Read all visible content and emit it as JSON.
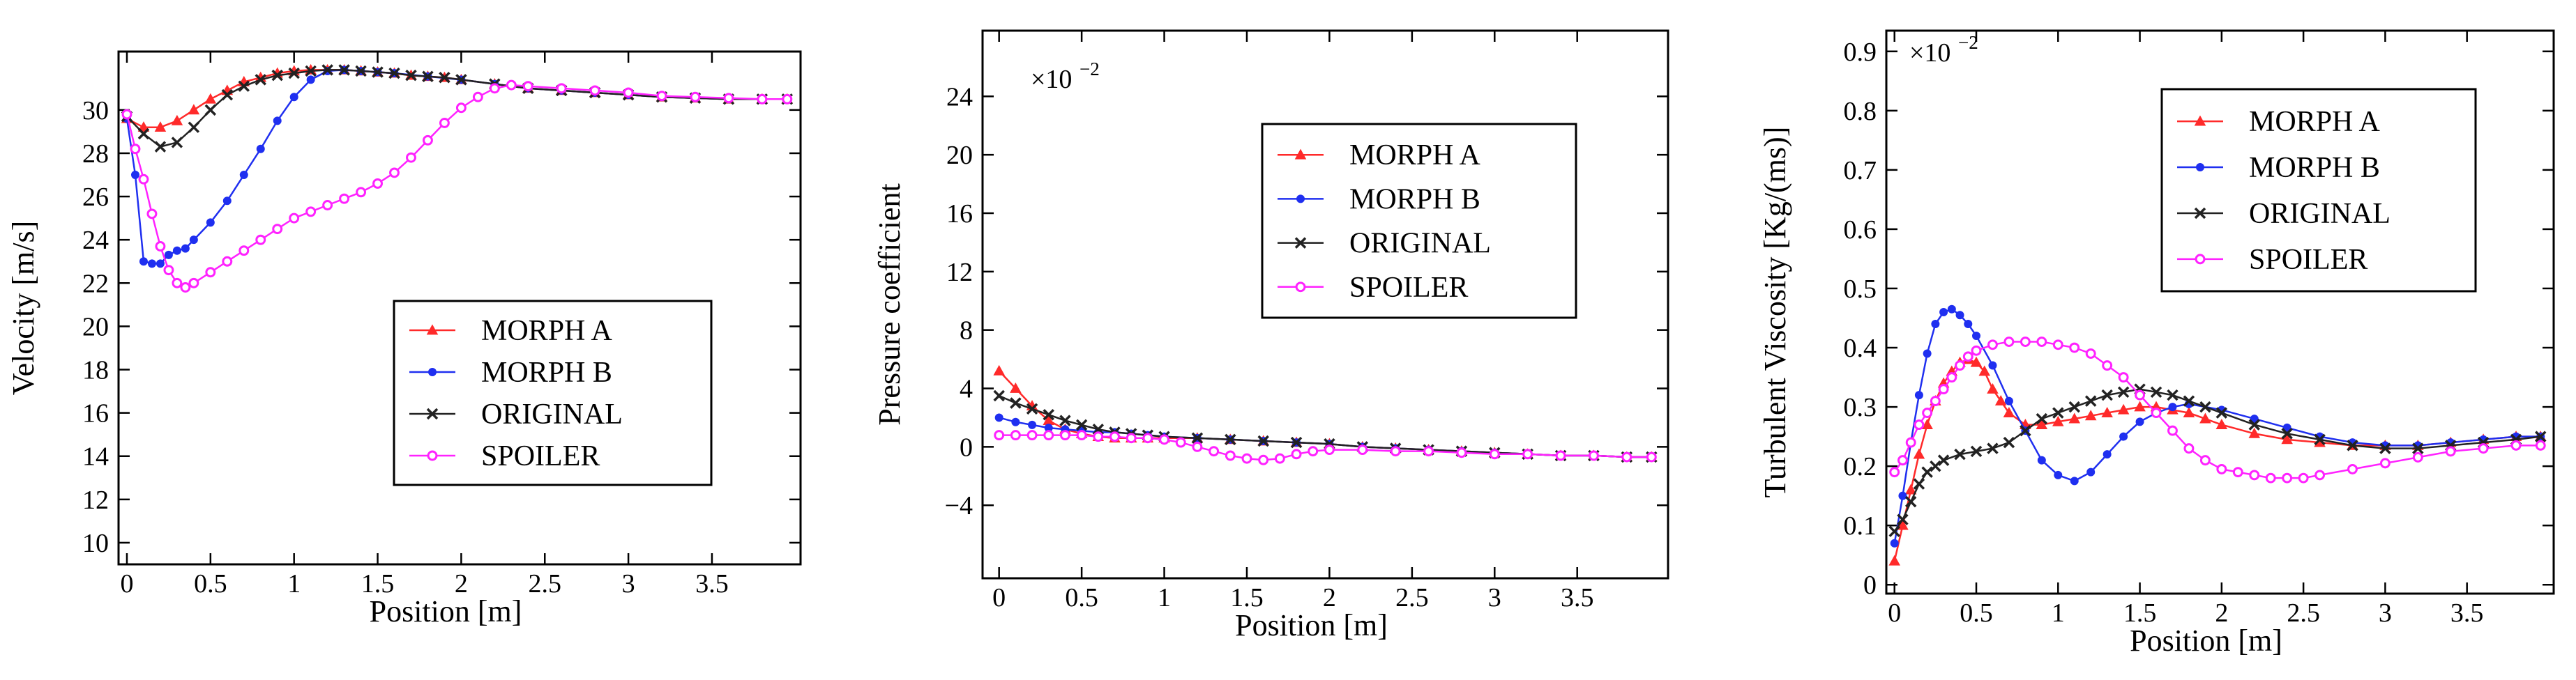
{
  "chart_data": [
    {
      "type": "line",
      "title": "",
      "xlabel": "Position [m]",
      "ylabel": "Velocity [m/s]",
      "xlim": [
        -0.05,
        4.03
      ],
      "ylim": [
        9.0,
        32.7
      ],
      "xticks": [
        0,
        0.5,
        1,
        1.5,
        2,
        2.5,
        3,
        3.5
      ],
      "xtick_labels": [
        "0",
        "0.5",
        "1",
        "1.5",
        "2",
        "2.5",
        "3",
        "3.5"
      ],
      "yticks": [
        10,
        12,
        14,
        16,
        18,
        20,
        22,
        24,
        26,
        28,
        30
      ],
      "ytick_labels": [
        "10",
        "12",
        "14",
        "16",
        "18",
        "20",
        "22",
        "24",
        "26",
        "28",
        "30"
      ],
      "legend": [
        "MORPH A",
        "MORPH B",
        "ORIGINAL",
        "SPOILER"
      ],
      "legend_position": "bottom-right",
      "series": [
        {
          "name": "MORPH A",
          "color": "#ff2a2a",
          "marker": "triangle",
          "x": [
            0,
            0.1,
            0.2,
            0.3,
            0.4,
            0.5,
            0.6,
            0.7,
            0.8,
            0.9,
            1.0,
            1.1,
            1.2,
            1.3,
            1.4,
            1.5,
            1.6,
            1.7,
            1.8,
            1.9,
            2.0,
            2.2,
            2.4,
            2.6,
            2.8,
            3.0,
            3.2,
            3.4,
            3.6,
            3.8,
            3.95
          ],
          "y": [
            29.6,
            29.2,
            29.2,
            29.5,
            30.0,
            30.5,
            30.9,
            31.3,
            31.5,
            31.7,
            31.8,
            31.85,
            31.85,
            31.85,
            31.8,
            31.75,
            31.7,
            31.6,
            31.55,
            31.5,
            31.4,
            31.2,
            31.0,
            30.9,
            30.8,
            30.7,
            30.6,
            30.55,
            30.5,
            30.5,
            30.5
          ]
        },
        {
          "name": "MORPH B",
          "color": "#1f2ff0",
          "marker": "circle",
          "x": [
            0,
            0.05,
            0.1,
            0.15,
            0.2,
            0.25,
            0.3,
            0.35,
            0.4,
            0.5,
            0.6,
            0.7,
            0.8,
            0.9,
            1.0,
            1.1,
            1.2,
            1.3,
            1.4,
            1.5,
            1.6,
            1.8,
            2.0,
            2.2,
            2.4,
            2.6,
            2.8,
            3.0,
            3.2,
            3.4,
            3.6,
            3.8,
            3.95
          ],
          "y": [
            29.6,
            27.0,
            23.0,
            22.9,
            22.9,
            23.3,
            23.5,
            23.6,
            24.0,
            24.8,
            25.8,
            27.0,
            28.2,
            29.5,
            30.6,
            31.4,
            31.8,
            31.85,
            31.8,
            31.75,
            31.7,
            31.55,
            31.4,
            31.2,
            31.0,
            30.9,
            30.8,
            30.7,
            30.6,
            30.55,
            30.5,
            30.5,
            30.5
          ]
        },
        {
          "name": "ORIGINAL",
          "color": "#222222",
          "marker": "x",
          "x": [
            0,
            0.1,
            0.2,
            0.3,
            0.4,
            0.5,
            0.6,
            0.7,
            0.8,
            0.9,
            1.0,
            1.1,
            1.2,
            1.3,
            1.4,
            1.5,
            1.6,
            1.7,
            1.8,
            1.9,
            2.0,
            2.2,
            2.4,
            2.6,
            2.8,
            3.0,
            3.2,
            3.4,
            3.6,
            3.8,
            3.95
          ],
          "y": [
            29.7,
            28.9,
            28.3,
            28.5,
            29.2,
            30.0,
            30.7,
            31.1,
            31.4,
            31.6,
            31.7,
            31.8,
            31.85,
            31.85,
            31.8,
            31.75,
            31.7,
            31.6,
            31.55,
            31.5,
            31.4,
            31.2,
            31.0,
            30.9,
            30.8,
            30.7,
            30.6,
            30.55,
            30.5,
            30.5,
            30.5
          ]
        },
        {
          "name": "SPOILER",
          "color": "#ff22ff",
          "marker": "circle-open",
          "x": [
            0,
            0.05,
            0.1,
            0.15,
            0.2,
            0.25,
            0.3,
            0.35,
            0.4,
            0.5,
            0.6,
            0.7,
            0.8,
            0.9,
            1.0,
            1.1,
            1.2,
            1.3,
            1.4,
            1.5,
            1.6,
            1.7,
            1.8,
            1.9,
            2.0,
            2.1,
            2.2,
            2.3,
            2.4,
            2.6,
            2.8,
            3.0,
            3.2,
            3.4,
            3.6,
            3.8,
            3.95
          ],
          "y": [
            29.8,
            28.2,
            26.8,
            25.2,
            23.7,
            22.6,
            22.0,
            21.8,
            22.0,
            22.5,
            23.0,
            23.5,
            24.0,
            24.5,
            25.0,
            25.3,
            25.6,
            25.9,
            26.2,
            26.6,
            27.1,
            27.8,
            28.6,
            29.4,
            30.1,
            30.6,
            31.0,
            31.15,
            31.1,
            31.0,
            30.9,
            30.8,
            30.65,
            30.6,
            30.55,
            30.5,
            30.5
          ]
        }
      ]
    },
    {
      "type": "line",
      "title": "",
      "xlabel": "Position [m]",
      "ylabel": "Pressure coefficient",
      "multiplier_base": "×10",
      "multiplier_exp": "−2",
      "xlim": [
        -0.1,
        4.05
      ],
      "ylim": [
        -9.0,
        28.5
      ],
      "xticks": [
        0,
        0.5,
        1,
        1.5,
        2,
        2.5,
        3,
        3.5
      ],
      "xtick_labels": [
        "0",
        "0.5",
        "1",
        "1.5",
        "2",
        "2.5",
        "3",
        "3.5"
      ],
      "yticks": [
        -4,
        0,
        4,
        8,
        12,
        16,
        20,
        24
      ],
      "ytick_labels": [
        "−4",
        "0",
        "4",
        "8",
        "12",
        "16",
        "20",
        "24"
      ],
      "legend": [
        "MORPH A",
        "MORPH B",
        "ORIGINAL",
        "SPOILER"
      ],
      "legend_position": "top-right",
      "series": [
        {
          "name": "MORPH A",
          "color": "#ff2a2a",
          "marker": "triangle",
          "x": [
            0,
            0.1,
            0.2,
            0.3,
            0.4,
            0.5,
            0.6,
            0.7,
            0.8,
            0.9,
            1.0,
            1.2,
            1.4,
            1.6,
            1.8,
            2.0,
            2.2,
            2.4,
            2.6,
            2.8,
            3.0,
            3.2,
            3.4,
            3.6,
            3.8,
            3.95
          ],
          "y": [
            5.2,
            4.0,
            2.8,
            1.8,
            1.2,
            0.9,
            0.7,
            0.6,
            0.6,
            0.6,
            0.6,
            0.6,
            0.5,
            0.4,
            0.3,
            0.2,
            0.0,
            -0.1,
            -0.2,
            -0.3,
            -0.4,
            -0.5,
            -0.6,
            -0.6,
            -0.7,
            -0.7
          ]
        },
        {
          "name": "MORPH B",
          "color": "#1f2ff0",
          "marker": "circle",
          "x": [
            0,
            0.1,
            0.2,
            0.3,
            0.4,
            0.5,
            0.6,
            0.7,
            0.8,
            0.9,
            1.0,
            1.2,
            1.4,
            1.6,
            1.8,
            2.0,
            2.2,
            2.4,
            2.6,
            2.8,
            3.0,
            3.2,
            3.4,
            3.6,
            3.8,
            3.95
          ],
          "y": [
            2.0,
            1.7,
            1.5,
            1.3,
            1.2,
            1.1,
            1.0,
            1.0,
            0.9,
            0.8,
            0.7,
            0.6,
            0.5,
            0.4,
            0.3,
            0.2,
            0.0,
            -0.1,
            -0.2,
            -0.3,
            -0.4,
            -0.5,
            -0.6,
            -0.6,
            -0.7,
            -0.7
          ]
        },
        {
          "name": "ORIGINAL",
          "color": "#222222",
          "marker": "x",
          "x": [
            0,
            0.1,
            0.2,
            0.3,
            0.4,
            0.5,
            0.6,
            0.7,
            0.8,
            0.9,
            1.0,
            1.2,
            1.4,
            1.6,
            1.8,
            2.0,
            2.2,
            2.4,
            2.6,
            2.8,
            3.0,
            3.2,
            3.4,
            3.6,
            3.8,
            3.95
          ],
          "y": [
            3.5,
            3.0,
            2.6,
            2.2,
            1.8,
            1.5,
            1.2,
            1.0,
            0.9,
            0.8,
            0.7,
            0.6,
            0.5,
            0.4,
            0.3,
            0.2,
            0.0,
            -0.1,
            -0.2,
            -0.3,
            -0.4,
            -0.5,
            -0.6,
            -0.6,
            -0.7,
            -0.7
          ]
        },
        {
          "name": "SPOILER",
          "color": "#ff22ff",
          "marker": "circle-open",
          "x": [
            0,
            0.1,
            0.2,
            0.3,
            0.4,
            0.5,
            0.6,
            0.7,
            0.8,
            0.9,
            1.0,
            1.1,
            1.2,
            1.3,
            1.4,
            1.5,
            1.6,
            1.7,
            1.8,
            1.9,
            2.0,
            2.2,
            2.4,
            2.6,
            2.8,
            3.0,
            3.2,
            3.4,
            3.6,
            3.8,
            3.95
          ],
          "y": [
            0.8,
            0.8,
            0.8,
            0.8,
            0.8,
            0.8,
            0.7,
            0.7,
            0.6,
            0.6,
            0.5,
            0.3,
            0.0,
            -0.3,
            -0.6,
            -0.8,
            -0.9,
            -0.8,
            -0.5,
            -0.3,
            -0.2,
            -0.2,
            -0.3,
            -0.3,
            -0.4,
            -0.5,
            -0.5,
            -0.6,
            -0.6,
            -0.7,
            -0.7
          ]
        }
      ]
    },
    {
      "type": "line",
      "title": "",
      "xlabel": "Position [m]",
      "ylabel": "Turbulent Viscosity [Kg/(ms)]",
      "multiplier_base": "×10",
      "multiplier_exp": "−2",
      "xlim": [
        -0.05,
        4.03
      ],
      "ylim": [
        -0.015,
        0.935
      ],
      "xticks": [
        0,
        0.5,
        1,
        1.5,
        2,
        2.5,
        3,
        3.5
      ],
      "xtick_labels": [
        "0",
        "0.5",
        "1",
        "1.5",
        "2",
        "2.5",
        "3",
        "3.5"
      ],
      "yticks": [
        0,
        0.1,
        0.2,
        0.3,
        0.4,
        0.5,
        0.6,
        0.7,
        0.8,
        0.9
      ],
      "ytick_labels": [
        "0",
        "0.1",
        "0.2",
        "0.3",
        "0.4",
        "0.5",
        "0.6",
        "0.7",
        "0.8",
        "0.9"
      ],
      "legend": [
        "MORPH A",
        "MORPH B",
        "ORIGINAL",
        "SPOILER"
      ],
      "legend_position": "top-right",
      "series": [
        {
          "name": "MORPH A",
          "color": "#ff2a2a",
          "marker": "triangle",
          "x": [
            0,
            0.05,
            0.1,
            0.15,
            0.2,
            0.25,
            0.3,
            0.35,
            0.4,
            0.45,
            0.5,
            0.55,
            0.6,
            0.65,
            0.7,
            0.8,
            0.9,
            1.0,
            1.1,
            1.2,
            1.3,
            1.4,
            1.5,
            1.6,
            1.7,
            1.8,
            1.9,
            2.0,
            2.2,
            2.4,
            2.6,
            2.8,
            3.0,
            3.2,
            3.4,
            3.6,
            3.8,
            3.95
          ],
          "y": [
            0.04,
            0.1,
            0.16,
            0.22,
            0.27,
            0.31,
            0.34,
            0.36,
            0.375,
            0.38,
            0.375,
            0.36,
            0.33,
            0.31,
            0.29,
            0.27,
            0.27,
            0.275,
            0.28,
            0.285,
            0.29,
            0.295,
            0.3,
            0.3,
            0.295,
            0.29,
            0.28,
            0.27,
            0.255,
            0.245,
            0.24,
            0.235,
            0.235,
            0.235,
            0.24,
            0.245,
            0.25,
            0.25
          ]
        },
        {
          "name": "MORPH B",
          "color": "#1f2ff0",
          "marker": "circle",
          "x": [
            0,
            0.05,
            0.1,
            0.15,
            0.2,
            0.25,
            0.3,
            0.35,
            0.4,
            0.45,
            0.5,
            0.6,
            0.7,
            0.8,
            0.9,
            1.0,
            1.1,
            1.2,
            1.3,
            1.4,
            1.5,
            1.6,
            1.7,
            1.8,
            2.0,
            2.2,
            2.4,
            2.6,
            2.8,
            3.0,
            3.2,
            3.4,
            3.6,
            3.8,
            3.95
          ],
          "y": [
            0.07,
            0.15,
            0.24,
            0.32,
            0.39,
            0.44,
            0.46,
            0.465,
            0.455,
            0.44,
            0.42,
            0.37,
            0.31,
            0.26,
            0.21,
            0.185,
            0.175,
            0.19,
            0.22,
            0.25,
            0.275,
            0.29,
            0.3,
            0.305,
            0.295,
            0.28,
            0.265,
            0.25,
            0.24,
            0.235,
            0.235,
            0.24,
            0.245,
            0.25,
            0.25
          ]
        },
        {
          "name": "ORIGINAL",
          "color": "#222222",
          "marker": "x",
          "x": [
            0,
            0.05,
            0.1,
            0.15,
            0.2,
            0.25,
            0.3,
            0.4,
            0.5,
            0.6,
            0.7,
            0.8,
            0.9,
            1.0,
            1.1,
            1.2,
            1.3,
            1.4,
            1.5,
            1.6,
            1.7,
            1.8,
            1.9,
            2.0,
            2.2,
            2.4,
            2.6,
            2.8,
            3.0,
            3.2,
            3.4,
            3.6,
            3.8,
            3.95
          ],
          "y": [
            0.09,
            0.11,
            0.14,
            0.17,
            0.19,
            0.2,
            0.21,
            0.22,
            0.225,
            0.23,
            0.24,
            0.26,
            0.28,
            0.29,
            0.3,
            0.31,
            0.32,
            0.325,
            0.33,
            0.325,
            0.32,
            0.31,
            0.3,
            0.29,
            0.27,
            0.255,
            0.245,
            0.235,
            0.23,
            0.23,
            0.235,
            0.24,
            0.245,
            0.25
          ]
        },
        {
          "name": "SPOILER",
          "color": "#ff22ff",
          "marker": "circle-open",
          "x": [
            0,
            0.05,
            0.1,
            0.15,
            0.2,
            0.25,
            0.3,
            0.35,
            0.4,
            0.45,
            0.5,
            0.6,
            0.7,
            0.8,
            0.9,
            1.0,
            1.1,
            1.2,
            1.3,
            1.4,
            1.5,
            1.6,
            1.7,
            1.8,
            1.9,
            2.0,
            2.1,
            2.2,
            2.3,
            2.4,
            2.5,
            2.6,
            2.8,
            3.0,
            3.2,
            3.4,
            3.6,
            3.8,
            3.95
          ],
          "y": [
            0.19,
            0.21,
            0.24,
            0.27,
            0.29,
            0.31,
            0.33,
            0.35,
            0.37,
            0.385,
            0.395,
            0.405,
            0.41,
            0.41,
            0.41,
            0.405,
            0.4,
            0.39,
            0.37,
            0.35,
            0.32,
            0.29,
            0.26,
            0.23,
            0.21,
            0.195,
            0.19,
            0.185,
            0.18,
            0.18,
            0.18,
            0.185,
            0.195,
            0.205,
            0.215,
            0.225,
            0.23,
            0.235,
            0.235
          ]
        }
      ]
    }
  ]
}
